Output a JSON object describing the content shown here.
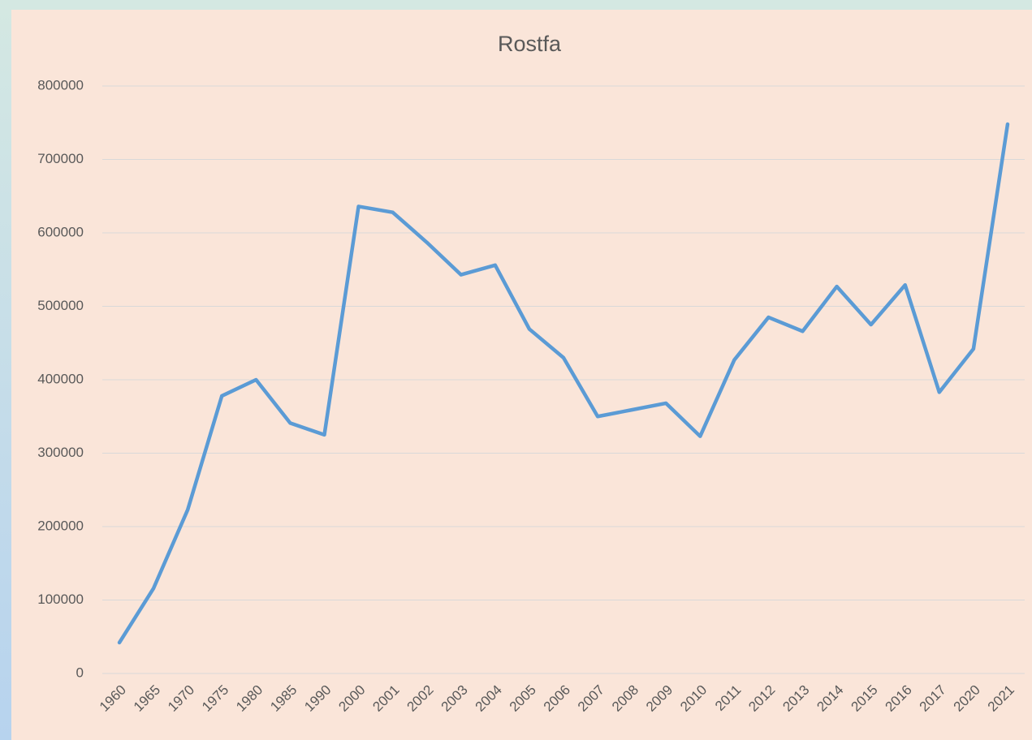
{
  "chart_data": {
    "type": "line",
    "title": "Rostfa",
    "categories": [
      "1960",
      "1965",
      "1970",
      "1975",
      "1980",
      "1985",
      "1990",
      "2000",
      "2001",
      "2002",
      "2003",
      "2004",
      "2005",
      "2006",
      "2007",
      "2008",
      "2009",
      "2010",
      "2011",
      "2012",
      "2013",
      "2014",
      "2015",
      "2016",
      "2017",
      "2020",
      "2021"
    ],
    "values": [
      42000,
      116000,
      223000,
      378000,
      400000,
      341000,
      325000,
      636000,
      628000,
      587000,
      543000,
      556000,
      469000,
      430000,
      350000,
      359000,
      368000,
      323000,
      427000,
      485000,
      466000,
      527000,
      475000,
      529000,
      383000,
      442000,
      748000
    ],
    "color": "#5b9bd5",
    "ylim": [
      0,
      800000
    ],
    "yticks": [
      0,
      100000,
      200000,
      300000,
      400000,
      500000,
      600000,
      700000,
      800000
    ],
    "grid": true
  }
}
